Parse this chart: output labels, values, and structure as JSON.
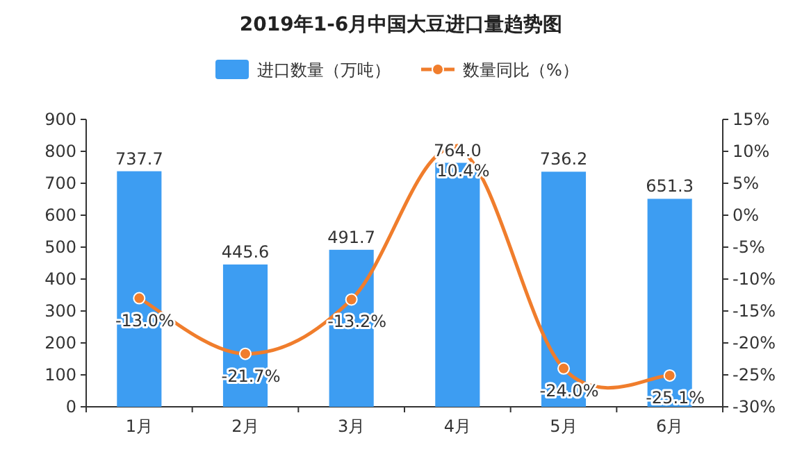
{
  "chart_data": {
    "type": "bar",
    "title": "2019年1-6月中国大豆进口量趋势图",
    "categories": [
      "1月",
      "2月",
      "3月",
      "4月",
      "5月",
      "6月"
    ],
    "series": [
      {
        "name": "进口数量（万吨）",
        "color": "#3d9df2",
        "values": [
          737.7,
          445.6,
          491.7,
          764.0,
          736.2,
          651.3
        ],
        "value_labels": [
          "737.7",
          "445.6",
          "491.7",
          "764.0",
          "736.2",
          "651.3"
        ]
      },
      {
        "name": "数量同比（%）",
        "type": "line",
        "axis": "y2",
        "color": "#f07d2c",
        "marker": "circle",
        "values": [
          -13.0,
          -21.7,
          -13.2,
          10.4,
          -24.0,
          -25.1
        ],
        "value_labels": [
          "-13.0%",
          "-21.7%",
          "-13.2%",
          "10.4%",
          "-24.0%",
          "-25.1%"
        ]
      }
    ],
    "ylim": [
      0,
      900
    ],
    "yticks": [
      0,
      100,
      200,
      300,
      400,
      500,
      600,
      700,
      800,
      900
    ],
    "y2lim": [
      -30,
      15
    ],
    "y2ticks": [
      {
        "value": -30,
        "label": "-30%"
      },
      {
        "value": -25,
        "label": "-25%"
      },
      {
        "value": -20,
        "label": "-20%"
      },
      {
        "value": -15,
        "label": "-15%"
      },
      {
        "value": -10,
        "label": "-10%"
      },
      {
        "value": -5,
        "label": "-5%"
      },
      {
        "value": 0,
        "label": "0%"
      },
      {
        "value": 5,
        "label": "5%"
      },
      {
        "value": 10,
        "label": "10%"
      },
      {
        "value": 15,
        "label": "15%"
      }
    ],
    "legend": "top"
  }
}
